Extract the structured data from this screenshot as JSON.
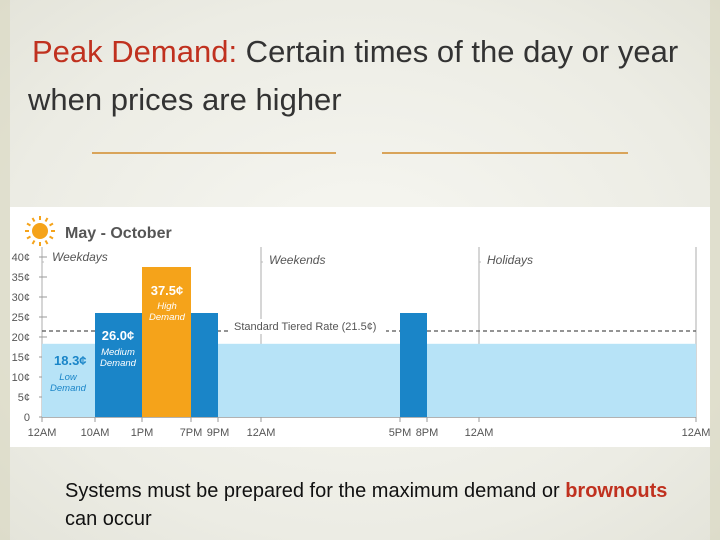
{
  "slide": {
    "title_bullet": "",
    "title_keyword": "Peak Demand:",
    "title_rest": " Certain times of the day or year when prices are higher",
    "divider_icon": "",
    "bottom_text_before": "Systems must be prepared for the maximum demand or ",
    "bottom_keyword": "brownouts",
    "bottom_text_after": " can occur"
  },
  "chart_data": {
    "type": "bar",
    "title": "May - October",
    "icon": "sun-icon",
    "y_ticks": [
      "0",
      "5¢",
      "10¢",
      "15¢",
      "20¢",
      "25¢",
      "30¢",
      "35¢",
      "40¢"
    ],
    "ylim": [
      0,
      40
    ],
    "x_ticks": [
      "12AM",
      "10AM",
      "1PM",
      "7PM",
      "9PM",
      "12AM",
      "5PM",
      "8PM",
      "12AM",
      "12AM"
    ],
    "section_labels": [
      "Weekdays",
      "Weekends",
      "Holidays"
    ],
    "baseline": {
      "value": 18.3,
      "label": ""
    },
    "reference_line": {
      "value": 21.5,
      "label": "Standard Tiered Rate (21.5¢)"
    },
    "bars": [
      {
        "value": 18.3,
        "value_label": "18.3¢",
        "tier": "Low Demand",
        "tier_lines": [
          "Low",
          "Demand"
        ],
        "color": "#b7e3f7"
      },
      {
        "value": 26.0,
        "value_label": "26.0¢",
        "tier": "Medium Demand",
        "tier_lines": [
          "Medium",
          "Demand"
        ],
        "color": "#1a85c8"
      },
      {
        "value": 37.5,
        "value_label": "37.5¢",
        "tier": "High Demand",
        "tier_lines": [
          "High",
          "Demand"
        ],
        "color": "#f5a31a"
      },
      {
        "value": 26.0,
        "value_label": "",
        "tier": "Medium Demand",
        "tier_lines": [],
        "color": "#1a85c8"
      },
      {
        "value": 26.0,
        "value_label": "",
        "tier": "Medium Demand",
        "tier_lines": [],
        "color": "#1a85c8"
      }
    ],
    "colors": {
      "low": "#b7e3f7",
      "medium": "#1a85c8",
      "high": "#f5a31a",
      "axis": "#999999",
      "text": "#555555"
    }
  }
}
